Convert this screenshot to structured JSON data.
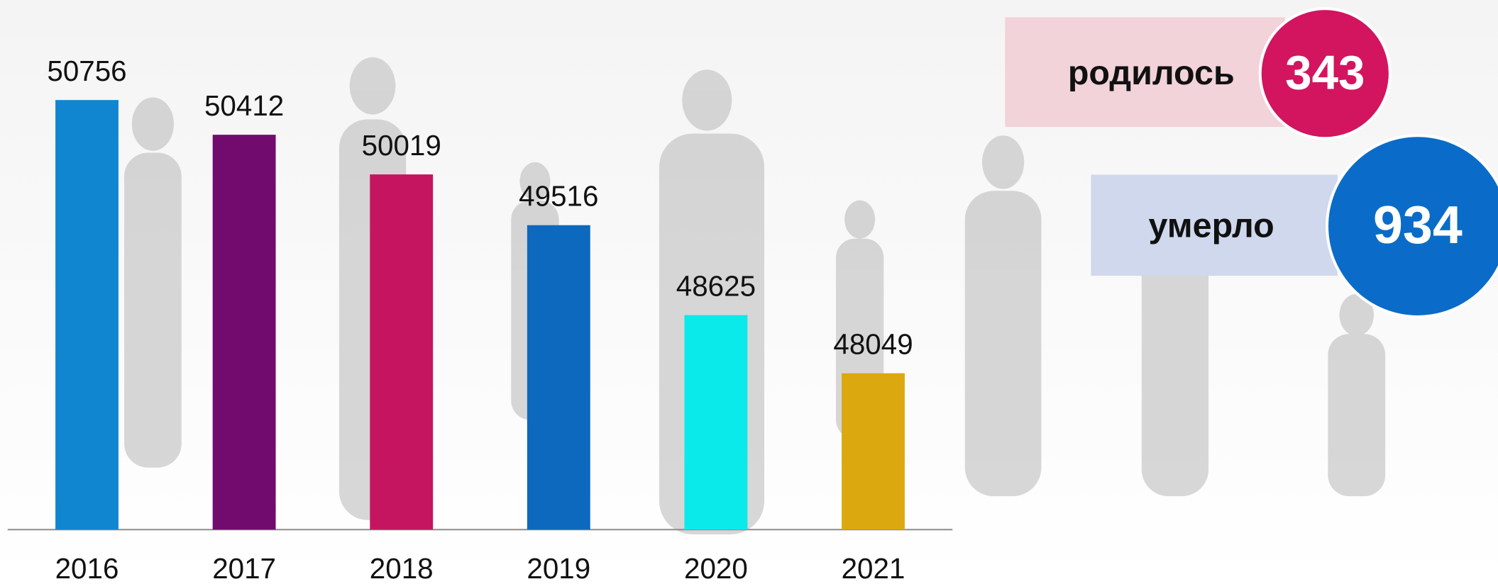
{
  "chart_data": {
    "type": "bar",
    "categories": [
      "2016",
      "2017",
      "2018",
      "2019",
      "2020",
      "2021"
    ],
    "values": [
      50756,
      50412,
      50019,
      49516,
      48625,
      48049
    ],
    "colors": [
      "#1186d0",
      "#720b6e",
      "#c51560",
      "#0c69bd",
      "#0aeaea",
      "#dba90f"
    ],
    "ylim": [
      46500,
      51000
    ]
  },
  "stats": [
    {
      "label": "родилось",
      "value": "343",
      "color": "#d3145f",
      "box_color": "#f2d3da"
    },
    {
      "label": "умерло",
      "value": "934",
      "color": "#0a6cc8",
      "box_color": "#cfd8ec"
    }
  ]
}
